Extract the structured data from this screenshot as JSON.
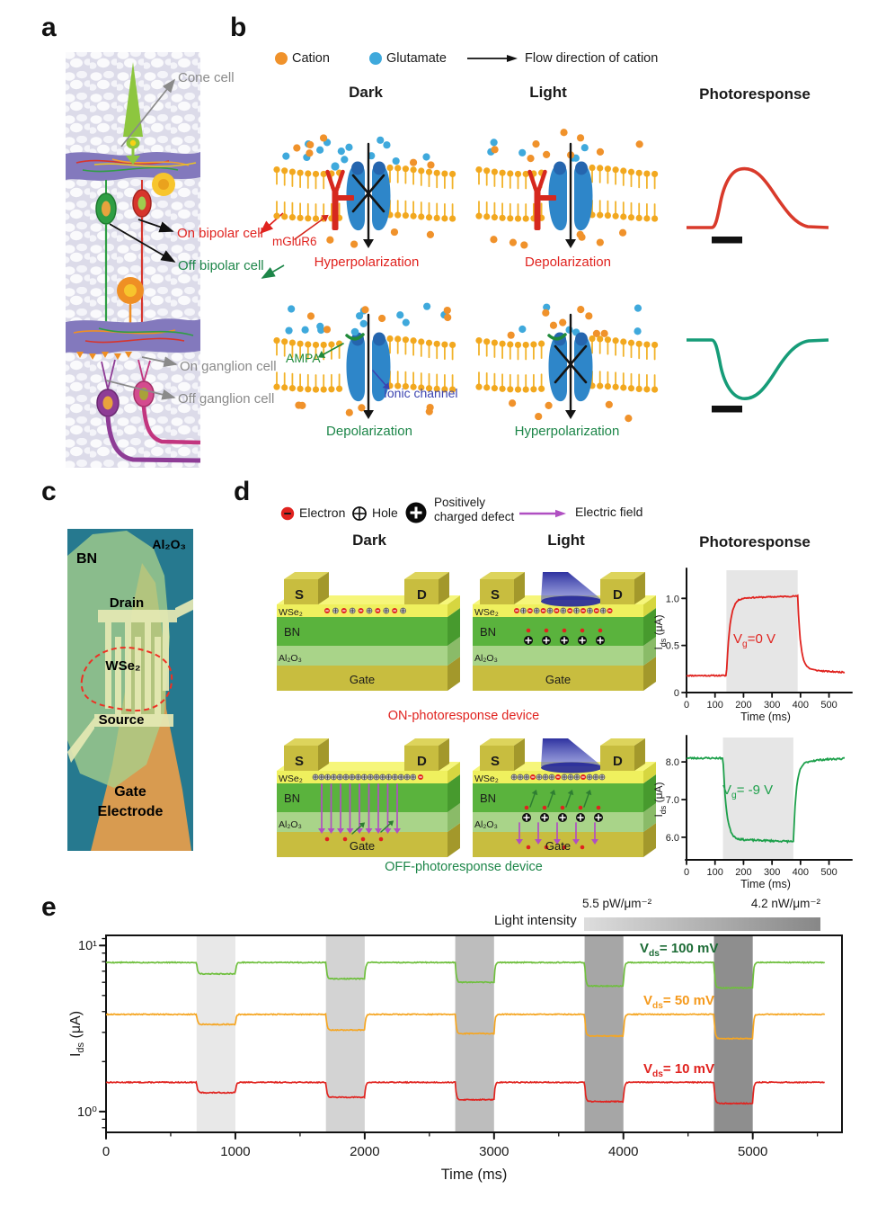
{
  "panel_a": {
    "label": "a",
    "annotations": {
      "cone": "Cone cell",
      "on_bipolar": "On bipolar cell",
      "off_bipolar": "Off bipolar cell",
      "on_ganglion": "On ganglion cell",
      "off_ganglion": "Off ganglion cell"
    }
  },
  "panel_b": {
    "label": "b",
    "legend": {
      "cation": "Cation",
      "glutamate": "Glutamate",
      "flow": "Flow direction of cation"
    },
    "headers": {
      "dark": "Dark",
      "light": "Light",
      "photoresponse": "Photoresponse"
    },
    "labels": {
      "mglur6": "mGluR6",
      "ampa": "AMPA",
      "ionic_channel": "Ionic channel"
    },
    "states": {
      "dark_on": "Hyperpolarization",
      "light_on": "Depolarization",
      "dark_off": "Depolarization",
      "light_off": "Hyperpolarization"
    }
  },
  "panel_c": {
    "label": "c",
    "labels": {
      "al2o3": "Al₂O₃",
      "bn": "BN",
      "drain": "Drain",
      "wse2": "WSe₂",
      "source": "Source",
      "gate1": "Gate",
      "gate2": "Electrode"
    }
  },
  "panel_d": {
    "label": "d",
    "legend": {
      "electron": "Electron",
      "hole": "Hole",
      "defect1": "Positively",
      "defect2": "charged defect",
      "efield": "Electric field"
    },
    "headers": {
      "dark": "Dark",
      "light": "Light",
      "photoresponse": "Photoresponse"
    },
    "device_labels": {
      "s": "S",
      "d": "D",
      "wse2": "WSe₂",
      "bn": "BN",
      "al2o3": "Al₂O₃",
      "gate": "Gate"
    },
    "captions": {
      "on": "ON-photoresponse device",
      "off": "OFF-photoresponse device"
    }
  },
  "panel_e": {
    "label": "e",
    "intensity": {
      "title": "Light intensity",
      "min": "5.5 pW/μm⁻²",
      "max": "4.2 nW/μm⁻²"
    }
  },
  "colors": {
    "cation": "#f0922b",
    "glutamate": "#3fa9dc",
    "on_accent": "#e0231f",
    "off_accent": "#1d8649",
    "ionic_channel_text": "#3c44b0",
    "efield": "#b04fc2",
    "membrane": "#f2a81f",
    "channel": "#2e86c9"
  },
  "chart_data": [
    {
      "id": "on-photoresponse-chart",
      "type": "line",
      "xlabel": "Time (ms)",
      "ylabel_parts": {
        "sym": "I",
        "sub": "ds",
        "unit": " (μA)"
      },
      "xlim": [
        0,
        555
      ],
      "xticks": [
        0,
        100,
        200,
        300,
        400,
        500
      ],
      "ylim": [
        0,
        1.28
      ],
      "yticks": [
        0,
        0.5,
        1.0
      ],
      "ytick_labels": [
        "0",
        "0.5",
        "1.0"
      ],
      "light_window": [
        140,
        390
      ],
      "band_color": "#e6e6e6",
      "trace": {
        "dark_level": 0.18,
        "light_level": 1.0,
        "after_level": 0.21,
        "noise": 0.012,
        "seed": 11
      },
      "color": "#e0231f",
      "annotation": {
        "pre": "V",
        "sub": "g",
        "rest": "=0 V"
      },
      "annotation_color": "#e0231f",
      "legend_position": "none",
      "grid": false
    },
    {
      "id": "off-photoresponse-chart",
      "type": "line",
      "xlabel": "Time (ms)",
      "ylabel_parts": {
        "sym": "I",
        "sub": "ds",
        "unit": " (μA)"
      },
      "xlim": [
        0,
        555
      ],
      "xticks": [
        0,
        100,
        200,
        300,
        400,
        500
      ],
      "ylim": [
        5.4,
        8.6
      ],
      "yticks": [
        6.0,
        7.0,
        8.0
      ],
      "ytick_labels": [
        "6.0",
        "7.0",
        "8.0"
      ],
      "light_window": [
        128,
        375
      ],
      "band_color": "#e6e6e6",
      "trace": {
        "dark_level": 8.1,
        "light_level": 5.95,
        "after_level": 8.1,
        "noise": 0.045,
        "seed": 23
      },
      "color": "#1da04b",
      "annotation": {
        "pre": "V",
        "sub": "g",
        "rest": "= -9 V"
      },
      "annotation_color": "#1da04b",
      "legend_position": "none",
      "grid": false
    },
    {
      "id": "intensity-dependence-chart",
      "type": "line",
      "xlabel": "Time (ms)",
      "ylabel_parts": {
        "sym": "I",
        "sub": "ds",
        "unit": " (μA)"
      },
      "xlim": [
        0,
        5690
      ],
      "xticks": [
        0,
        1000,
        2000,
        3000,
        4000,
        5000
      ],
      "yscale": "log",
      "ylim": [
        0.75,
        11.5
      ],
      "yticks": [
        1,
        10
      ],
      "ytick_labels": [
        "10⁰",
        "10¹"
      ],
      "yminor": [
        0.8,
        0.9,
        2,
        3,
        4,
        5,
        6,
        7,
        8,
        9,
        11
      ],
      "light_pulses": [
        [
          700,
          1000
        ],
        [
          1700,
          2000
        ],
        [
          2700,
          3000
        ],
        [
          3700,
          4000
        ],
        [
          4700,
          5000
        ]
      ],
      "pulse_colors": [
        "#e8e8e8",
        "#d3d3d3",
        "#bdbdbd",
        "#a6a6a6",
        "#8e8e8e"
      ],
      "pulse_intensity_range": [
        "5.5 pW/μm⁻²",
        "4.2 nW/μm⁻²"
      ],
      "series": [
        {
          "label_parts": {
            "pre": "V",
            "sub": "ds",
            "rest": "= 100 mV"
          },
          "color": "#6fbf3e",
          "label_color": "#1c6b35",
          "baseline": 7.9,
          "dip_levels": [
            6.75,
            6.3,
            6.0,
            5.7,
            5.55
          ],
          "seed": 5
        },
        {
          "label_parts": {
            "pre": "V",
            "sub": "ds",
            "rest": "= 50 mV"
          },
          "color": "#f5a623",
          "label_color": "#f59a1d",
          "baseline": 3.85,
          "dip_levels": [
            3.35,
            3.1,
            2.95,
            2.85,
            2.75
          ],
          "seed": 9
        },
        {
          "label_parts": {
            "pre": "V",
            "sub": "ds",
            "rest": "= 10 mV"
          },
          "color": "#e0231f",
          "label_color": "#e0231f",
          "baseline": 1.5,
          "dip_levels": [
            1.3,
            1.22,
            1.18,
            1.15,
            1.12
          ],
          "seed": 13
        }
      ],
      "grid": false,
      "legend_position": "inline-labels"
    },
    {
      "id": "on-bipolar-photoresponse-sketch",
      "type": "line",
      "description": "qualitative positive photoresponse pulse with light-stimulus bar",
      "color": "#d93a2b",
      "stimulus_bar": true
    },
    {
      "id": "off-bipolar-photoresponse-sketch",
      "type": "line",
      "description": "qualitative negative photoresponse pulse with light-stimulus bar",
      "color": "#169c78",
      "stimulus_bar": true
    }
  ]
}
